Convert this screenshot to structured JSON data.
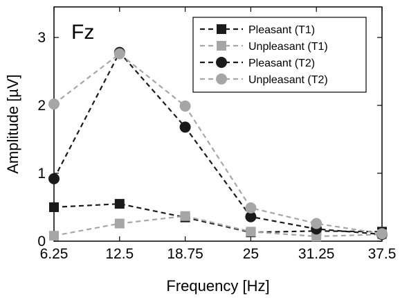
{
  "chart_data": {
    "type": "line",
    "title": "",
    "panel_label": "Fz",
    "xlabel": "Frequency [Hz]",
    "ylabel": "Amplitude [µV]",
    "x": [
      6.25,
      12.5,
      18.75,
      25,
      31.25,
      37.5
    ],
    "x_tick_labels": [
      "6.25",
      "12.5",
      "18.75",
      "25",
      "31.25",
      "37.5"
    ],
    "y_ticks": [
      0,
      1,
      2,
      3
    ],
    "y_tick_labels": [
      "0",
      "1",
      "2",
      "3"
    ],
    "xlim": [
      6.25,
      37.5
    ],
    "ylim": [
      0,
      3.45
    ],
    "grid": false,
    "legend_position": "top-right",
    "series": [
      {
        "name": "Pleasant (T1)",
        "color": "#1a1a1a",
        "marker": "square",
        "line": "dashed",
        "values": [
          0.5,
          0.55,
          0.35,
          0.13,
          0.15,
          0.14
        ]
      },
      {
        "name": "Unpleasant (T1)",
        "color": "#a6a6a6",
        "marker": "square",
        "line": "dashed",
        "values": [
          0.08,
          0.26,
          0.37,
          0.14,
          0.07,
          0.1
        ]
      },
      {
        "name": "Pleasant (T2)",
        "color": "#1a1a1a",
        "marker": "circle",
        "line": "dashed",
        "values": [
          0.92,
          2.78,
          1.68,
          0.36,
          0.18,
          0.1
        ]
      },
      {
        "name": "Unpleasant (T2)",
        "color": "#a6a6a6",
        "marker": "circle",
        "line": "dashed",
        "values": [
          2.02,
          2.76,
          1.99,
          0.49,
          0.26,
          0.11
        ]
      }
    ]
  }
}
